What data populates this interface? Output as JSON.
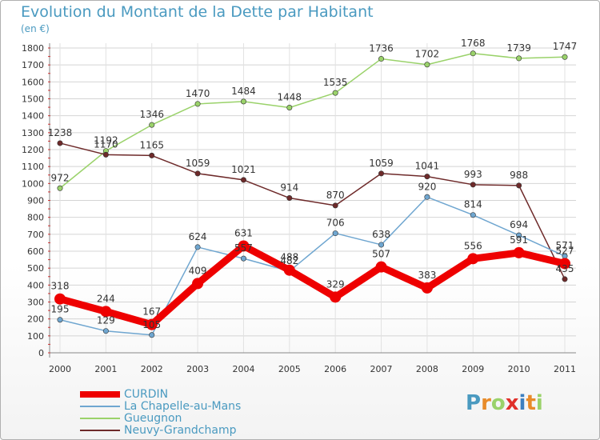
{
  "chart_data": {
    "type": "line",
    "title": "Evolution du Montant de la Dette par Habitant",
    "ylabel": "(en €)",
    "categories": [
      "2000",
      "2001",
      "2002",
      "2003",
      "2004",
      "2005",
      "2006",
      "2007",
      "2008",
      "2009",
      "2010",
      "2011"
    ],
    "ylim": [
      0,
      1800
    ],
    "yticks": [
      0,
      100,
      200,
      300,
      400,
      500,
      600,
      700,
      800,
      900,
      1000,
      1100,
      1200,
      1300,
      1400,
      1500,
      1600,
      1700,
      1800
    ],
    "grid": true,
    "legend_position": "bottom-left",
    "series": [
      {
        "name": "Gueugnon",
        "color": "#9ad26a",
        "values": [
          972,
          1192,
          1346,
          1470,
          1484,
          1448,
          1535,
          1736,
          1702,
          1768,
          1739,
          1747
        ]
      },
      {
        "name": "Neuvy-Grandchamp",
        "color": "#6e2a2a",
        "values": [
          1238,
          1170,
          1165,
          1059,
          1021,
          914,
          870,
          1059,
          1041,
          993,
          988,
          435
        ]
      },
      {
        "name": "La Chapelle-au-Mans",
        "color": "#6fa6d0",
        "values": [
          195,
          129,
          105,
          624,
          557,
          482,
          706,
          638,
          920,
          814,
          694,
          571
        ]
      },
      {
        "name": "CURDIN",
        "color": "#ee0000",
        "values": [
          318,
          244,
          167,
          409,
          631,
          488,
          329,
          507,
          383,
          556,
          591,
          527
        ]
      }
    ]
  },
  "legend": {
    "items": [
      {
        "label": "CURDIN",
        "color": "#ee0000"
      },
      {
        "label": "La Chapelle-au-Mans",
        "color": "#6fa6d0"
      },
      {
        "label": "Gueugnon",
        "color": "#9ad26a"
      },
      {
        "label": "Neuvy-Grandchamp",
        "color": "#6e2a2a"
      }
    ]
  },
  "logo": {
    "text": "Proxiti"
  }
}
